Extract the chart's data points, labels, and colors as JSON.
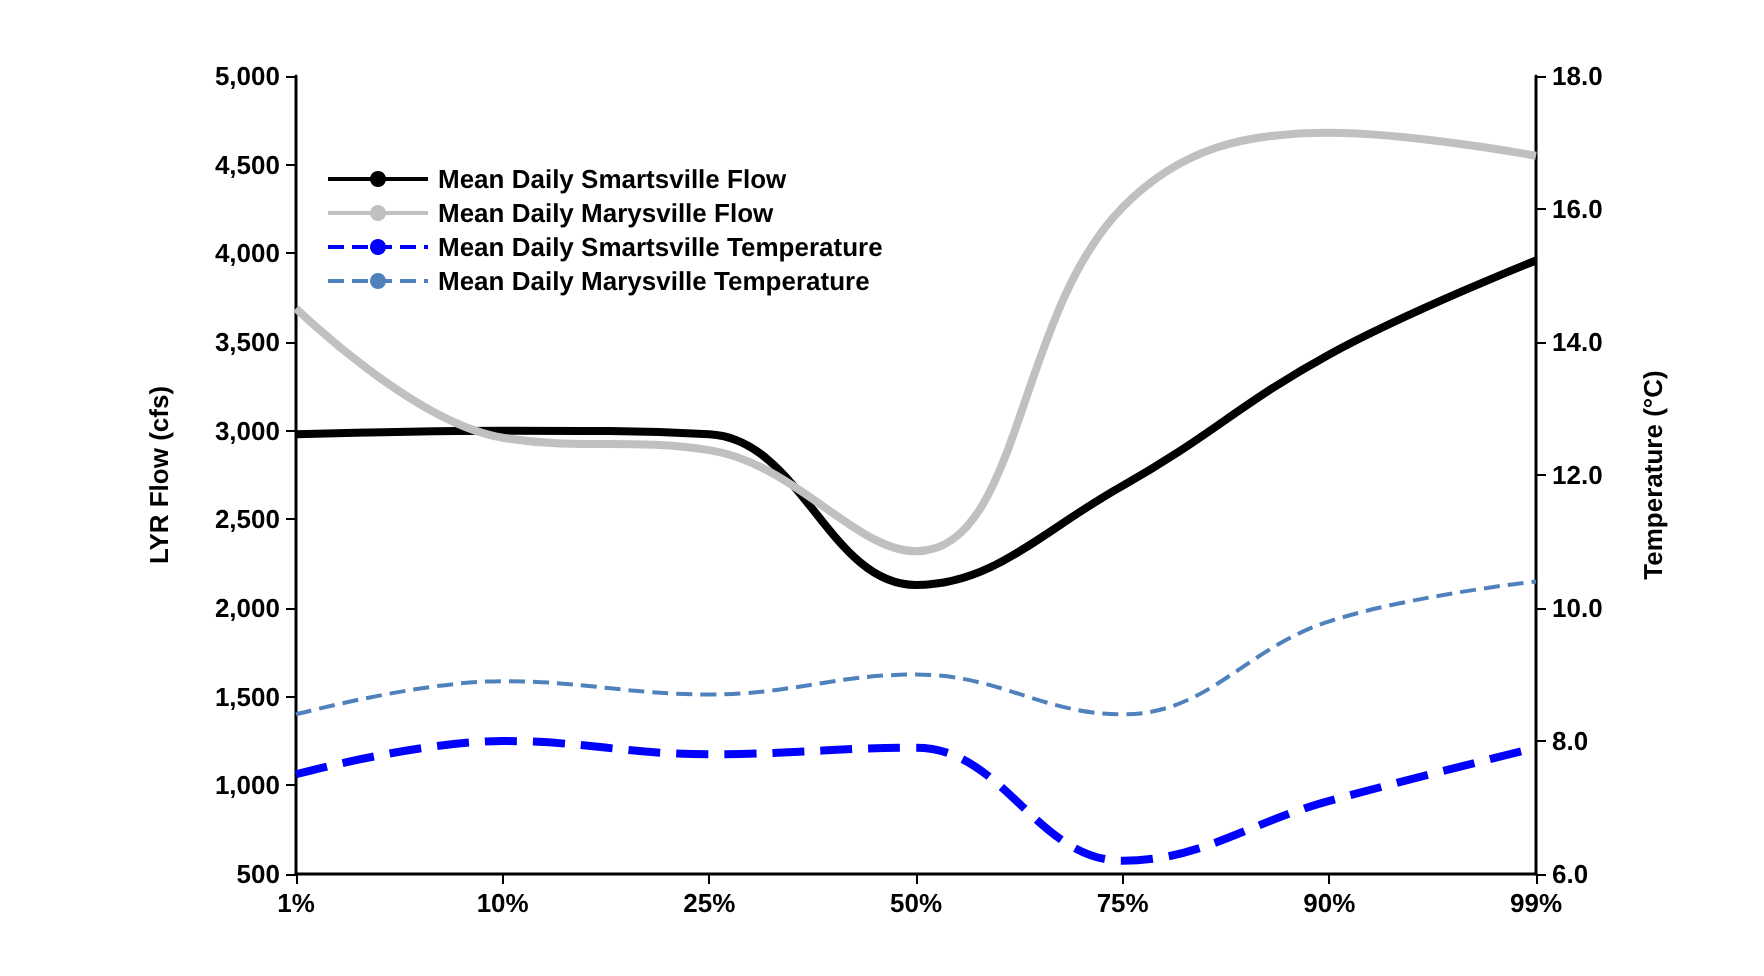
{
  "chart_data": {
    "type": "line",
    "ylabel": "LYR Flow (cfs)",
    "y2label": "Temperature (°C)",
    "categories": [
      "1%",
      "10%",
      "25%",
      "50%",
      "75%",
      "90%",
      "99%"
    ],
    "ylim": [
      500,
      5000
    ],
    "yticks": [
      500,
      {
        "value": 1000,
        "label": "1,000"
      },
      {
        "value": 1500,
        "label": "1,500"
      },
      {
        "value": 2000,
        "label": "2,000"
      },
      {
        "value": 2500,
        "label": "2,500"
      },
      {
        "value": 3000,
        "label": "3,000"
      },
      {
        "value": 3500,
        "label": "3,500"
      },
      {
        "value": 4000,
        "label": "4,000"
      },
      {
        "value": 4500,
        "label": "4,500"
      },
      {
        "value": 5000,
        "label": "5,000"
      }
    ],
    "y2lim": [
      6,
      18
    ],
    "y2ticks": [
      {
        "value": 6,
        "label": "6.0"
      },
      {
        "value": 8,
        "label": "8.0"
      },
      {
        "value": 10,
        "label": "10.0"
      },
      {
        "value": 12,
        "label": "12.0"
      },
      {
        "value": 14,
        "label": "14.0"
      },
      {
        "value": 16,
        "label": "16.0"
      },
      {
        "value": 18,
        "label": "18.0"
      }
    ],
    "grid": false,
    "legend": "top left",
    "marker": "none",
    "series": [
      {
        "name": "Mean Daily Smartsville Flow",
        "color": "#000000",
        "line_style": "solid",
        "values": [
          2980,
          3000,
          2980,
          2130,
          2690,
          3430,
          3960
        ]
      },
      {
        "name": "Mean Daily Marysville Flow",
        "color": "#c0c0c0",
        "line_style": "solid",
        "values": [
          3690,
          2960,
          2890,
          2320,
          4260,
          4680,
          4550
        ]
      },
      {
        "name": "Mean Daily Smartsville Temperature",
        "color": "#0000ff",
        "line_style": "dashed",
        "axis": "y2",
        "values": [
          7.5,
          8.0,
          7.8,
          7.9,
          6.2,
          7.1,
          7.9
        ]
      },
      {
        "name": "Mean Daily Marysville Temperature",
        "color": "#4f81bd",
        "line_style": "dashed",
        "axis": "y2",
        "values": [
          8.4,
          8.9,
          8.7,
          9.0,
          8.4,
          9.8,
          10.4
        ]
      }
    ]
  }
}
